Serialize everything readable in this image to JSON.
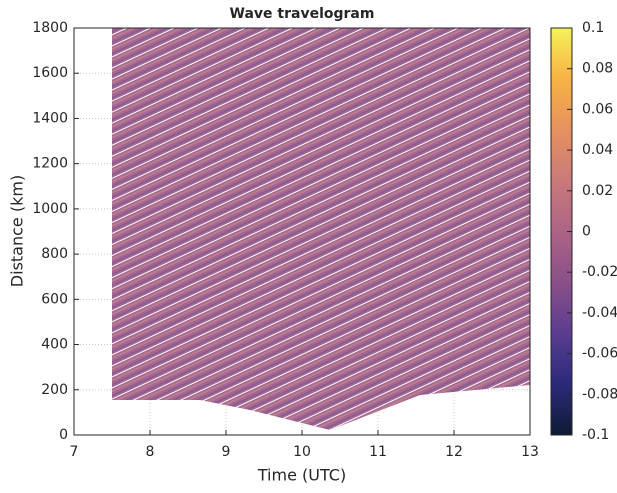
{
  "chart_data": {
    "type": "travelogram",
    "title": "Wave travelogram",
    "x_label": "Time (UTC)",
    "y_label": "Distance (km)",
    "xlim": [
      7,
      13
    ],
    "xticks": [
      7,
      8,
      9,
      10,
      11,
      12,
      13
    ],
    "ylim": [
      0,
      1800
    ],
    "yticks": [
      0,
      200,
      400,
      600,
      800,
      1000,
      1200,
      1400,
      1600,
      1800
    ],
    "grid": true,
    "clim": [
      -0.1,
      0.1
    ],
    "cticks": [
      -0.1,
      -0.08,
      -0.06,
      -0.04,
      -0.02,
      0,
      0.02,
      0.04,
      0.06,
      0.08,
      0.1
    ],
    "colormap": [
      "#0d1b33",
      "#2b2a7a",
      "#5a3d8f",
      "#8a5088",
      "#ac6486",
      "#c97a7a",
      "#e6915f",
      "#f7b244",
      "#f4f35a"
    ]
  }
}
